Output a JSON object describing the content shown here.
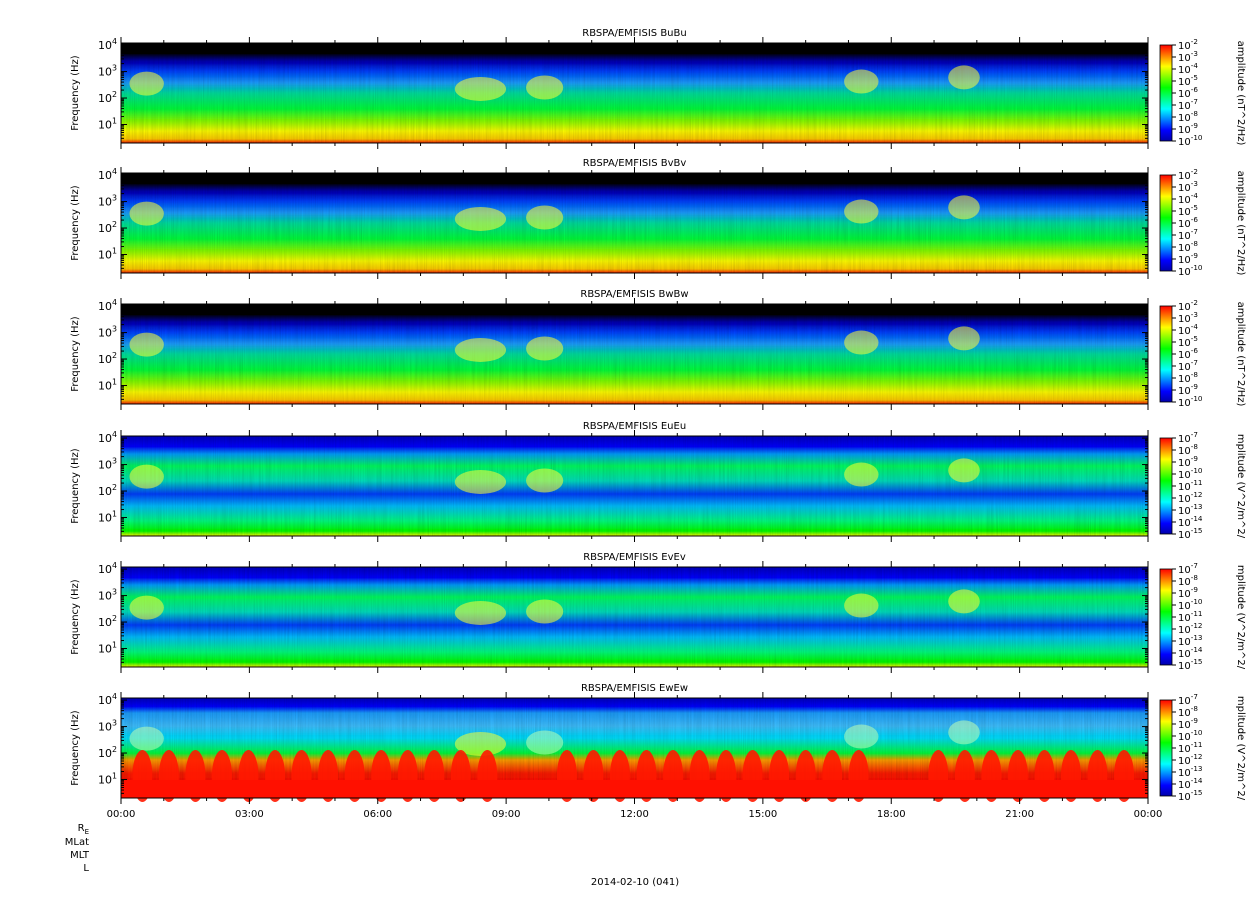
{
  "chart_data": [
    {
      "type": "heatmap",
      "title": "RBSPA/EMFISIS  BuBu",
      "ylabel": "Frequency (Hz)",
      "yscale": "log",
      "ytick_labels": [
        "10^1",
        "10^2",
        "10^3",
        "10^4"
      ],
      "ytick_values": [
        10,
        100,
        1000,
        10000
      ],
      "ylim": [
        2,
        12000
      ],
      "colorbar_label": "amplitude (nT^2/Hz)",
      "colorbar_ticks": [
        "10^-2",
        "10^-3",
        "10^-4",
        "10^-5",
        "10^-6",
        "10^-7",
        "10^-8",
        "10^-9",
        "10^-10"
      ],
      "colorbar_range": [
        -10,
        -2
      ],
      "colorscale": "rainbow-black-background"
    },
    {
      "type": "heatmap",
      "title": "RBSPA/EMFISIS  BvBv",
      "ylabel": "Frequency (Hz)",
      "yscale": "log",
      "ytick_labels": [
        "10^1",
        "10^2",
        "10^3",
        "10^4"
      ],
      "ytick_values": [
        10,
        100,
        1000,
        10000
      ],
      "ylim": [
        2,
        12000
      ],
      "colorbar_label": "amplitude (nT^2/Hz)",
      "colorbar_ticks": [
        "10^-2",
        "10^-3",
        "10^-4",
        "10^-5",
        "10^-6",
        "10^-7",
        "10^-8",
        "10^-9",
        "10^-10"
      ],
      "colorbar_range": [
        -10,
        -2
      ],
      "colorscale": "rainbow-black-background"
    },
    {
      "type": "heatmap",
      "title": "RBSPA/EMFISIS  BwBw",
      "ylabel": "Frequency (Hz)",
      "yscale": "log",
      "ytick_labels": [
        "10^1",
        "10^2",
        "10^3",
        "10^4"
      ],
      "ytick_values": [
        10,
        100,
        1000,
        10000
      ],
      "ylim": [
        2,
        12000
      ],
      "colorbar_label": "amplitude (nT^2/Hz)",
      "colorbar_ticks": [
        "10^-2",
        "10^-3",
        "10^-4",
        "10^-5",
        "10^-6",
        "10^-7",
        "10^-8",
        "10^-9",
        "10^-10"
      ],
      "colorbar_range": [
        -10,
        -2
      ],
      "colorscale": "rainbow-black-background"
    },
    {
      "type": "heatmap",
      "title": "RBSPA/EMFISIS  EuEu",
      "ylabel": "Frequency (Hz)",
      "yscale": "log",
      "ytick_labels": [
        "10^1",
        "10^2",
        "10^3",
        "10^4"
      ],
      "ytick_values": [
        10,
        100,
        1000,
        10000
      ],
      "ylim": [
        2,
        12000
      ],
      "colorbar_label": "mplitude (V^2/m^2/",
      "colorbar_ticks": [
        "10^-7",
        "10^-8",
        "10^-9",
        "10^-10",
        "10^-11",
        "10^-12",
        "10^-13",
        "10^-14",
        "10^-15"
      ],
      "colorbar_range": [
        -15,
        -7
      ],
      "colorscale": "rainbow-black-background"
    },
    {
      "type": "heatmap",
      "title": "RBSPA/EMFISIS  EvEv",
      "ylabel": "Frequency (Hz)",
      "yscale": "log",
      "ytick_labels": [
        "10^1",
        "10^2",
        "10^3",
        "10^4"
      ],
      "ytick_values": [
        10,
        100,
        1000,
        10000
      ],
      "ylim": [
        2,
        12000
      ],
      "colorbar_label": "mplitude (V^2/m^2/",
      "colorbar_ticks": [
        "10^-7",
        "10^-8",
        "10^-9",
        "10^-10",
        "10^-11",
        "10^-12",
        "10^-13",
        "10^-14",
        "10^-15"
      ],
      "colorbar_range": [
        -15,
        -7
      ],
      "colorscale": "rainbow-black-background"
    },
    {
      "type": "heatmap",
      "title": "RBSPA/EMFISIS  EwEw",
      "ylabel": "Frequency (Hz)",
      "yscale": "log",
      "ytick_labels": [
        "10^1",
        "10^2",
        "10^3",
        "10^4"
      ],
      "ytick_values": [
        10,
        100,
        1000,
        10000
      ],
      "ylim": [
        2,
        12000
      ],
      "colorbar_label": "mplitude (V^2/m^2/",
      "colorbar_ticks": [
        "10^-7",
        "10^-8",
        "10^-9",
        "10^-10",
        "10^-11",
        "10^-12",
        "10^-13",
        "10^-14",
        "10^-15"
      ],
      "colorbar_range": [
        -15,
        -7
      ],
      "colorscale": "rainbow-black-background"
    }
  ],
  "x_axis": {
    "tick_labels": [
      "00:00",
      "03:00",
      "06:00",
      "09:00",
      "12:00",
      "15:00",
      "18:00",
      "21:00",
      "00:00"
    ],
    "tick_hours": [
      0,
      3,
      6,
      9,
      12,
      15,
      18,
      21,
      24
    ],
    "minor_tick_interval_hours": 1,
    "range_hours": [
      0,
      24
    ],
    "ephemeris_labels": [
      "RE",
      "MLat",
      "MLT",
      "L"
    ],
    "date_label": "2014-02-10 (041)"
  },
  "colors": {
    "background": "#000000",
    "colormap": [
      "#0000aa",
      "#0000ff",
      "#0080ff",
      "#00ffff",
      "#00ff80",
      "#00ff00",
      "#80ff00",
      "#ffff00",
      "#ff8000",
      "#ff0000"
    ]
  }
}
